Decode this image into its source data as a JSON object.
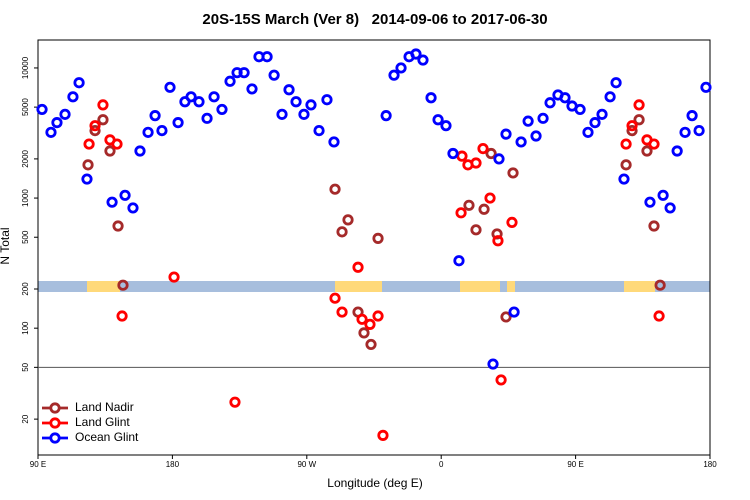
{
  "chart_data": {
    "type": "scatter",
    "title": "20S-15S March (Ver 8)   2014-09-06 to 2017-06-30",
    "x_label": "Longitude (deg E)",
    "y_label": "N Total",
    "xlim": [
      90,
      540
    ],
    "xticks": [
      {
        "value": 90,
        "label": "90 E"
      },
      {
        "value": 180,
        "label": "180"
      },
      {
        "value": 270,
        "label": "90 W"
      },
      {
        "value": 360,
        "label": "0"
      },
      {
        "value": 450,
        "label": "90 E"
      },
      {
        "value": 540,
        "label": "180"
      }
    ],
    "ylim": [
      10.6,
      16400
    ],
    "yticks": [
      20,
      50,
      100,
      200,
      500,
      1000,
      2000,
      5000,
      10000
    ],
    "y_scale": "log",
    "hline": 50,
    "legend_position": "lower left",
    "series": [
      {
        "name": "Land Nadir",
        "color": "#a52a2a",
        "x": [
          123.5,
          128.2,
          133.5,
          138.2,
          143.6,
          146.9,
          288.9,
          293.6,
          297.6,
          304.3,
          308.3,
          313.0,
          317.7,
          378.6,
          383.3,
          388.7,
          393.4,
          397.4,
          403.4,
          408.1,
          483.8,
          487.8,
          492.5,
          497.8,
          502.5,
          506.6
        ],
        "values": [
          1800,
          3300,
          4000,
          2300,
          610,
          214,
          1170,
          550,
          680,
          133,
          92,
          75,
          490,
          880,
          570,
          820,
          2200,
          530,
          122,
          1560,
          1800,
          3300,
          4000,
          2300,
          610,
          214
        ]
      },
      {
        "name": "Land Glint",
        "color": "#ff0000",
        "x": [
          124.2,
          128.2,
          133.5,
          138.2,
          142.9,
          146.3,
          181.1,
          221.9,
          288.9,
          293.6,
          304.3,
          307.0,
          312.3,
          317.7,
          321.0,
          373.3,
          373.9,
          377.9,
          383.3,
          388.0,
          392.7,
          398.0,
          400.1,
          407.4,
          483.8,
          487.8,
          492.5,
          497.8,
          502.5,
          505.9
        ],
        "values": [
          2600,
          3600,
          5200,
          2800,
          2600,
          124,
          247,
          27,
          170,
          133,
          294,
          117,
          107,
          124,
          15,
          770,
          2100,
          1800,
          1860,
          2400,
          1000,
          470,
          40,
          650,
          2600,
          3600,
          5200,
          2800,
          2600,
          124
        ]
      },
      {
        "name": "Ocean Glint",
        "color": "#0000ff",
        "x": [
          92.7,
          98.7,
          102.7,
          108.1,
          113.4,
          117.5,
          122.8,
          139.6,
          148.3,
          153.6,
          158.3,
          163.7,
          168.4,
          173.0,
          178.4,
          183.8,
          188.4,
          192.5,
          197.8,
          203.2,
          207.9,
          213.2,
          218.6,
          223.3,
          228.0,
          233.3,
          238.0,
          243.4,
          248.1,
          253.4,
          258.1,
          262.8,
          268.1,
          272.8,
          278.2,
          283.5,
          288.2,
          323.1,
          328.4,
          333.1,
          338.5,
          343.1,
          347.8,
          353.2,
          357.9,
          363.2,
          367.9,
          371.9,
          394.7,
          398.7,
          403.4,
          408.8,
          413.5,
          418.2,
          423.5,
          428.2,
          432.9,
          438.2,
          442.9,
          447.6,
          453.0,
          458.3,
          463.0,
          467.7,
          473.1,
          477.1,
          482.4,
          499.8,
          508.6,
          513.3,
          518.0,
          523.3,
          528.0,
          532.7,
          537.3
        ],
        "values": [
          4800,
          3200,
          3800,
          4400,
          6000,
          7700,
          1400,
          930,
          1050,
          840,
          2300,
          3200,
          4300,
          3300,
          7100,
          3800,
          5500,
          6000,
          5500,
          4100,
          6000,
          4800,
          7900,
          9200,
          9200,
          6900,
          12200,
          12200,
          8800,
          4400,
          6800,
          5500,
          4400,
          5200,
          3300,
          5700,
          2700,
          4300,
          8800,
          10000,
          12200,
          12800,
          11500,
          5900,
          4000,
          3600,
          2200,
          330,
          53,
          2000,
          3100,
          133,
          2700,
          3900,
          3000,
          4100,
          5400,
          6200,
          5900,
          5100,
          4800,
          3200,
          3800,
          4400,
          6000,
          7700,
          1400,
          930,
          1050,
          840,
          2300,
          3200,
          4300,
          3300,
          7100
        ]
      }
    ]
  }
}
